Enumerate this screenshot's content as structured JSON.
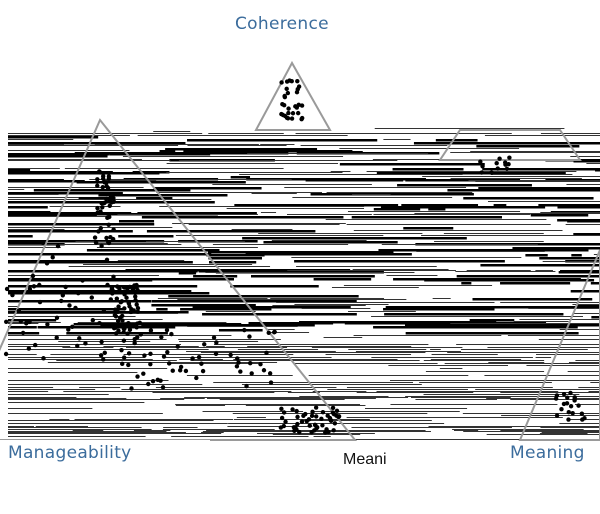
{
  "labels": {
    "top": "Coherence",
    "left": "Manageability",
    "middle": "Meani",
    "right": "Meaning"
  }
}
